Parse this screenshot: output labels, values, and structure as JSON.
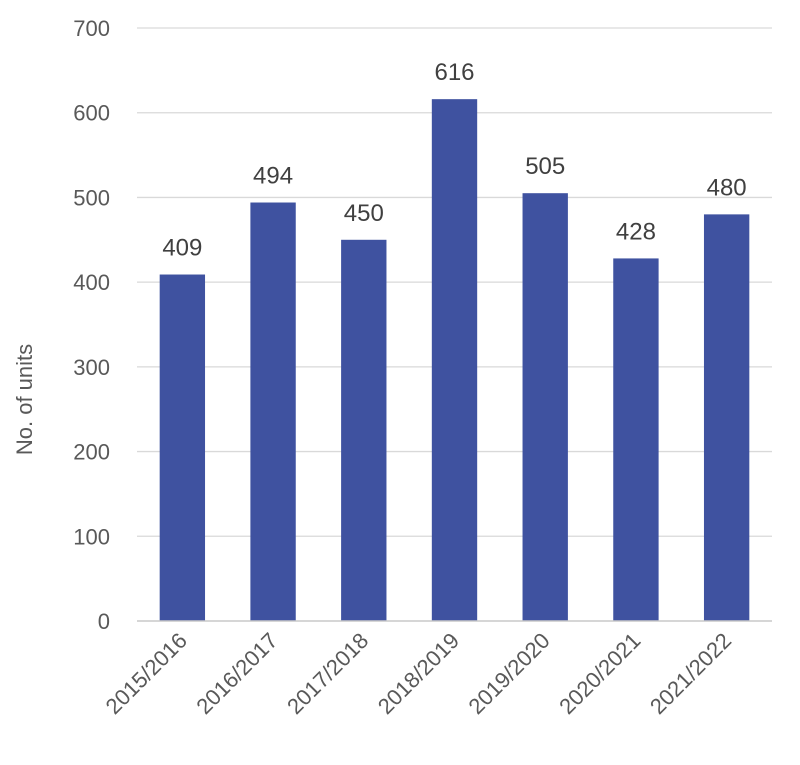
{
  "chart_data": {
    "type": "bar",
    "title": "",
    "xlabel": "",
    "ylabel": "No. of units",
    "categories": [
      "2015/2016",
      "2016/2017",
      "2017/2018",
      "2018/2019",
      "2019/2020",
      "2020/2021",
      "2021/2022"
    ],
    "values": [
      409,
      494,
      450,
      616,
      505,
      428,
      480
    ],
    "ylim": [
      0,
      700
    ],
    "yticks": [
      0,
      100,
      200,
      300,
      400,
      500,
      600,
      700
    ],
    "grid": true,
    "legend": "none",
    "bar_color": "#3f52a0"
  }
}
